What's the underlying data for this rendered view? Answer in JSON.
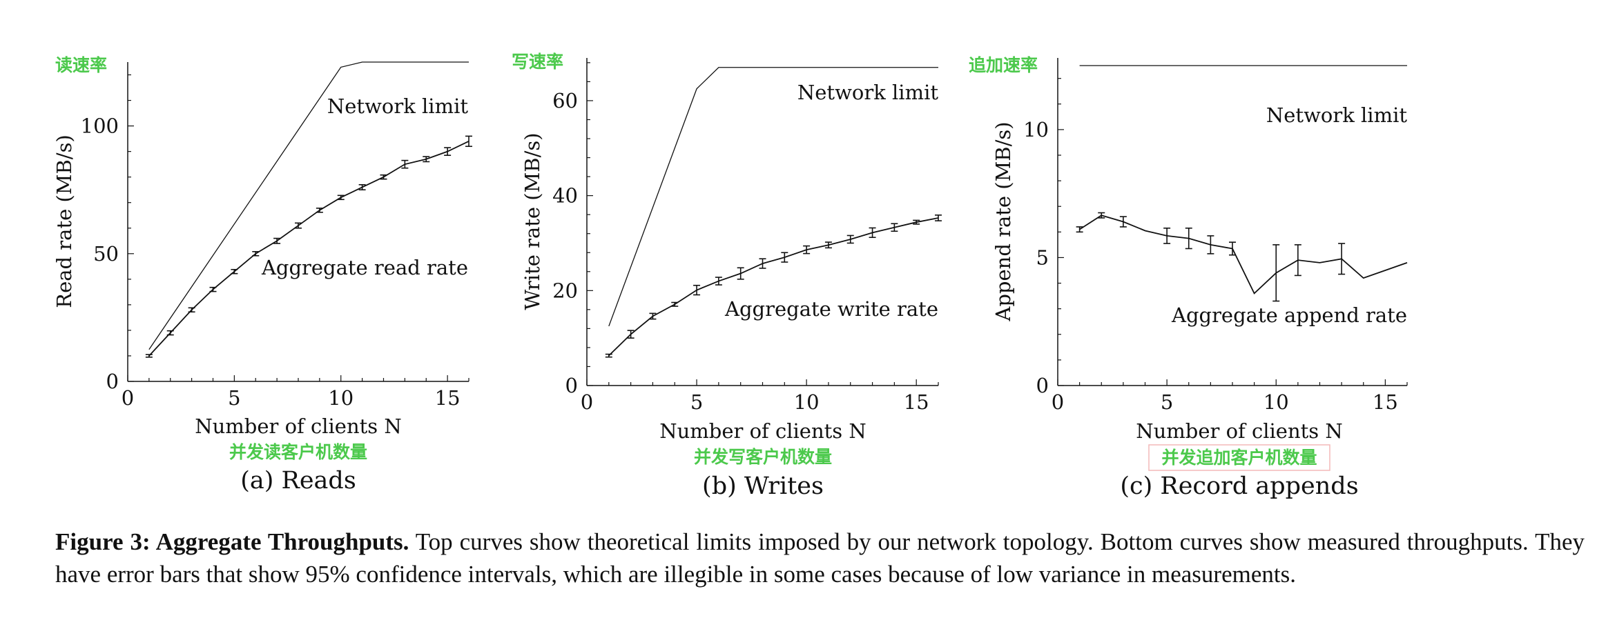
{
  "chart_data": [
    {
      "type": "line",
      "subcaption": "(a) Reads",
      "annotation_cn_y": "读速率",
      "annotation_cn_x": "并发读客户机数量",
      "ylabel": "Read rate (MB/s)",
      "xlabel": "Number of clients N",
      "xlim": [
        0,
        16
      ],
      "ylim": [
        0,
        125
      ],
      "xticks": [
        0,
        5,
        10,
        15
      ],
      "yticks": [
        0,
        50,
        100
      ],
      "grid": false,
      "series": [
        {
          "name": "Network limit",
          "x": [
            1,
            10,
            11,
            16
          ],
          "y": [
            12.5,
            123,
            125,
            125
          ],
          "error": null
        },
        {
          "name": "Aggregate read rate",
          "x": [
            1,
            2,
            3,
            4,
            5,
            6,
            7,
            8,
            9,
            10,
            11,
            12,
            13,
            14,
            15,
            16
          ],
          "y": [
            10,
            19,
            28,
            36,
            43,
            50,
            55,
            61,
            67,
            72,
            76,
            80,
            85,
            87,
            90,
            94
          ],
          "error": [
            0.5,
            0.8,
            0.8,
            0.8,
            0.8,
            0.8,
            1,
            1,
            0.8,
            0.8,
            1,
            0.8,
            1.5,
            1,
            1.5,
            2
          ]
        }
      ]
    },
    {
      "type": "line",
      "subcaption": "(b) Writes",
      "annotation_cn_y": "写速率",
      "annotation_cn_x": "并发写客户机数量",
      "ylabel": "Write rate (MB/s)",
      "xlabel": "Number of clients N",
      "xlim": [
        0,
        16
      ],
      "ylim": [
        0,
        69
      ],
      "xticks": [
        0,
        5,
        10,
        15
      ],
      "yticks": [
        0,
        20,
        40,
        60
      ],
      "grid": false,
      "series": [
        {
          "name": "Network limit",
          "x": [
            1,
            5,
            6,
            16
          ],
          "y": [
            12.5,
            62.5,
            67,
            67
          ],
          "error": null
        },
        {
          "name": "Aggregate write rate",
          "x": [
            1,
            2,
            3,
            4,
            5,
            6,
            7,
            8,
            9,
            10,
            11,
            12,
            13,
            14,
            15,
            16
          ],
          "y": [
            6.3,
            10.8,
            14.6,
            17.1,
            20.1,
            22,
            23.6,
            25.7,
            27,
            28.6,
            29.6,
            30.8,
            32.2,
            33.3,
            34.4,
            35.3
          ],
          "error": [
            0.3,
            0.8,
            0.6,
            0.4,
            1,
            0.8,
            1.2,
            1,
            1,
            0.8,
            0.6,
            0.8,
            1,
            0.8,
            0.4,
            0.6
          ]
        }
      ]
    },
    {
      "type": "line",
      "subcaption": "(c) Record appends",
      "annotation_cn_y": "追加速率",
      "annotation_cn_x": "并发追加客户机数量",
      "ylabel": "Append rate (MB/s)",
      "xlabel": "Number of clients N",
      "xlim": [
        0,
        16
      ],
      "ylim": [
        0,
        12.8
      ],
      "xticks": [
        0,
        5,
        10,
        15
      ],
      "yticks": [
        0,
        5,
        10
      ],
      "grid": false,
      "series": [
        {
          "name": "Network limit",
          "x": [
            1,
            16
          ],
          "y": [
            12.5,
            12.5
          ],
          "error": null
        },
        {
          "name": "Aggregate append rate",
          "x": [
            1,
            2,
            3,
            4,
            5,
            6,
            7,
            8,
            9,
            10,
            11,
            12,
            13,
            14,
            15,
            16
          ],
          "y": [
            6.1,
            6.65,
            6.4,
            6.05,
            5.85,
            5.75,
            5.5,
            5.35,
            3.6,
            4.4,
            4.9,
            4.8,
            4.95,
            4.2,
            4.5,
            4.8
          ],
          "error": [
            0.1,
            0.1,
            0.2,
            0,
            0.3,
            0.4,
            0.35,
            0.25,
            0,
            1.1,
            0.6,
            0,
            0.6,
            0,
            0,
            0
          ]
        }
      ]
    }
  ],
  "caption": {
    "label": "Figure 3: Aggregate Throughputs.",
    "text": "Top curves show theoretical limits imposed by our network topology. Bottom curves show measured throughputs. They have error bars that show 95% confidence intervals, which are illegible in some cases because of low variance in measurements."
  },
  "colors": {
    "line": "#111111",
    "annotation": "#4cc94c",
    "highlight_border": "#f4b9b9"
  }
}
